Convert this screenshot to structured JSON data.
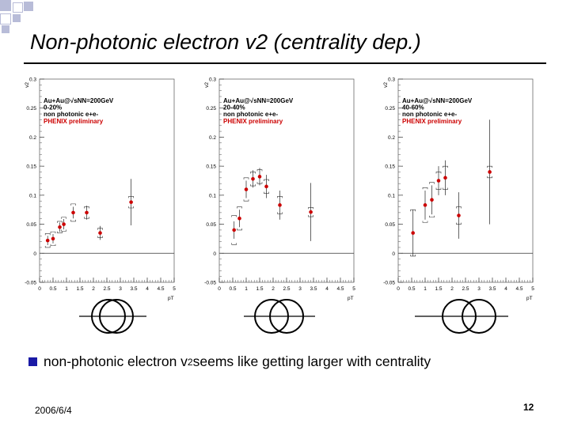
{
  "slide": {
    "title": "Non-photonic electron v2 (centrality dep.)",
    "bullet": {
      "prefix": "non-photonic electron v",
      "sub": "2",
      "suffix": " seems like getting larger with centrality"
    },
    "date": "2006/6/4",
    "page_number": "12"
  },
  "colors": {
    "bullet": "#1a1aa6",
    "data_point": "#cc0000",
    "preliminary_text": "#cc0000",
    "corner_square": "#b8bcd8"
  },
  "chart_data": [
    {
      "type": "scatter",
      "ylabel": "v2",
      "xlabel": "pT",
      "legend_lines": [
        "Au+Au@√sNN=200GeV",
        "0-20%",
        "non photonic e+e-"
      ],
      "preliminary": "PHENIX preliminary",
      "xlim": [
        0,
        5
      ],
      "ylim": [
        -0.05,
        0.3
      ],
      "xticks": [
        "0",
        "0.5",
        "1",
        "1.5",
        "2",
        "2.5",
        "3",
        "3.5",
        "4",
        "4.5",
        "5"
      ],
      "yticks": [
        "-0.05",
        "0",
        "0.05",
        "0.1",
        "0.15",
        "0.2",
        "0.25",
        "0.3"
      ],
      "points": [
        {
          "x": 0.3,
          "y": 0.022,
          "stat": 0.008,
          "sys": 0.012
        },
        {
          "x": 0.5,
          "y": 0.025,
          "stat": 0.008,
          "sys": 0.012
        },
        {
          "x": 0.75,
          "y": 0.045,
          "stat": 0.008,
          "sys": 0.01
        },
        {
          "x": 0.9,
          "y": 0.05,
          "stat": 0.009,
          "sys": 0.012
        },
        {
          "x": 1.25,
          "y": 0.07,
          "stat": 0.01,
          "sys": 0.015
        },
        {
          "x": 1.75,
          "y": 0.07,
          "stat": 0.012,
          "sys": 0.01
        },
        {
          "x": 2.25,
          "y": 0.035,
          "stat": 0.012,
          "sys": 0.008
        },
        {
          "x": 3.4,
          "y": 0.088,
          "stat": 0.04,
          "sys": 0.01
        }
      ]
    },
    {
      "type": "scatter",
      "ylabel": "v2",
      "xlabel": "pT",
      "legend_lines": [
        "Au+Au@√sNN=200GeV",
        "20-40%",
        "non photonic e+e-"
      ],
      "preliminary": "PHENIX preliminary",
      "xlim": [
        0,
        5
      ],
      "ylim": [
        -0.05,
        0.3
      ],
      "xticks": [
        "0",
        "0.5",
        "1",
        "1.5",
        "2",
        "2.5",
        "3",
        "3.5",
        "4",
        "4.5",
        "5"
      ],
      "yticks": [
        "-0.05",
        "0",
        "0.05",
        "0.1",
        "0.15",
        "0.2",
        "0.25",
        "0.3"
      ],
      "points": [
        {
          "x": 0.55,
          "y": 0.04,
          "stat": 0.015,
          "sys": 0.025
        },
        {
          "x": 0.75,
          "y": 0.06,
          "stat": 0.015,
          "sys": 0.02
        },
        {
          "x": 1.0,
          "y": 0.11,
          "stat": 0.015,
          "sys": 0.02
        },
        {
          "x": 1.25,
          "y": 0.128,
          "stat": 0.015,
          "sys": 0.012
        },
        {
          "x": 1.5,
          "y": 0.132,
          "stat": 0.015,
          "sys": 0.012
        },
        {
          "x": 1.75,
          "y": 0.115,
          "stat": 0.02,
          "sys": 0.012
        },
        {
          "x": 2.25,
          "y": 0.083,
          "stat": 0.025,
          "sys": 0.015
        },
        {
          "x": 3.4,
          "y": 0.071,
          "stat": 0.05,
          "sys": 0.008
        }
      ]
    },
    {
      "type": "scatter",
      "ylabel": "v2",
      "xlabel": "pT",
      "legend_lines": [
        "Au+Au@√sNN=200GeV",
        "40-60%",
        "non photonic e+e-"
      ],
      "preliminary": "PHENIX preliminary",
      "xlim": [
        0,
        5
      ],
      "ylim": [
        -0.05,
        0.3
      ],
      "xticks": [
        "0",
        "0.5",
        "1",
        "1.5",
        "2",
        "2.5",
        "3",
        "3.5",
        "4",
        "4.5",
        "5"
      ],
      "yticks": [
        "-0.05",
        "0",
        "0.05",
        "0.1",
        "0.15",
        "0.2",
        "0.25",
        "0.3"
      ],
      "points": [
        {
          "x": 0.55,
          "y": 0.035,
          "stat": 0.04,
          "sys": 0.04
        },
        {
          "x": 1.0,
          "y": 0.083,
          "stat": 0.025,
          "sys": 0.03
        },
        {
          "x": 1.25,
          "y": 0.092,
          "stat": 0.025,
          "sys": 0.03
        },
        {
          "x": 1.5,
          "y": 0.125,
          "stat": 0.025,
          "sys": 0.015
        },
        {
          "x": 1.75,
          "y": 0.13,
          "stat": 0.03,
          "sys": 0.02
        },
        {
          "x": 2.25,
          "y": 0.065,
          "stat": 0.04,
          "sys": 0.015
        },
        {
          "x": 3.4,
          "y": 0.14,
          "stat": 0.09,
          "sys": 0.01
        }
      ]
    }
  ]
}
